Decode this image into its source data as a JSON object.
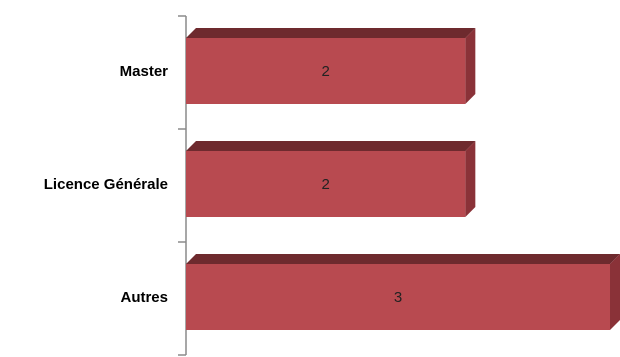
{
  "chart_data": {
    "type": "bar",
    "orientation": "horizontal",
    "style": "3d",
    "categories": [
      "Master",
      "Licence Générale",
      "Autres"
    ],
    "values": [
      2,
      2,
      3
    ],
    "data_labels": [
      "2",
      "2",
      "3"
    ],
    "xlim": [
      0,
      3
    ],
    "grid": false,
    "legend": "none",
    "colors": {
      "bar_front": "#b84a50",
      "bar_top": "#6e2a2e",
      "bar_side": "#8a3238",
      "axis": "#8a8a8a",
      "label_text": "#000000",
      "value_text": "#222222"
    }
  }
}
